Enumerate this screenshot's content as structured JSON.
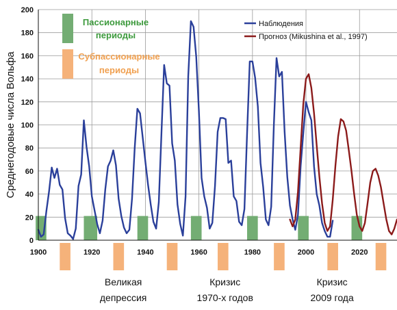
{
  "chart_data": {
    "type": "line",
    "ylabel": "Среднегодовые числа Вольфа",
    "xlabel": "",
    "xlim": [
      1900,
      2034
    ],
    "ylim": [
      0,
      200
    ],
    "x_ticks": [
      1900,
      1920,
      1940,
      1960,
      1980,
      2000,
      2020
    ],
    "y_ticks": [
      0,
      20,
      40,
      60,
      80,
      100,
      120,
      140,
      160,
      180,
      200
    ],
    "grid": true,
    "legend_position": "top-right",
    "series": [
      {
        "name": "Наблюдения",
        "color": "#2a3f9a",
        "x": [
          1900,
          1901,
          1902,
          1903,
          1904,
          1905,
          1906,
          1907,
          1908,
          1909,
          1910,
          1911,
          1912,
          1913,
          1914,
          1915,
          1916,
          1917,
          1918,
          1919,
          1920,
          1921,
          1922,
          1923,
          1924,
          1925,
          1926,
          1927,
          1928,
          1929,
          1930,
          1931,
          1932,
          1933,
          1934,
          1935,
          1936,
          1937,
          1938,
          1939,
          1940,
          1941,
          1942,
          1943,
          1944,
          1945,
          1946,
          1947,
          1948,
          1949,
          1950,
          1951,
          1952,
          1953,
          1954,
          1955,
          1956,
          1957,
          1958,
          1959,
          1960,
          1961,
          1962,
          1963,
          1964,
          1965,
          1966,
          1967,
          1968,
          1969,
          1970,
          1971,
          1972,
          1973,
          1974,
          1975,
          1976,
          1977,
          1978,
          1979,
          1980,
          1981,
          1982,
          1983,
          1984,
          1985,
          1986,
          1987,
          1988,
          1989,
          1990,
          1991,
          1992,
          1993,
          1994,
          1995,
          1996,
          1997,
          1998,
          1999,
          2000,
          2001,
          2002,
          2003,
          2004,
          2005,
          2006,
          2007,
          2008,
          2009,
          2010
        ],
        "values": [
          9,
          3,
          5,
          25,
          42,
          63,
          54,
          62,
          48,
          44,
          19,
          6,
          4,
          1,
          10,
          47,
          57,
          104,
          81,
          64,
          38,
          26,
          14,
          6,
          17,
          44,
          64,
          69,
          78,
          65,
          36,
          21,
          11,
          6,
          9,
          36,
          80,
          114,
          110,
          89,
          68,
          48,
          31,
          16,
          10,
          33,
          93,
          152,
          136,
          134,
          84,
          69,
          31,
          14,
          4,
          38,
          142,
          190,
          185,
          159,
          112,
          54,
          38,
          28,
          10,
          15,
          47,
          94,
          106,
          106,
          105,
          67,
          69,
          38,
          34,
          16,
          13,
          27,
          93,
          155,
          155,
          141,
          116,
          67,
          46,
          18,
          13,
          29,
          100,
          158,
          142,
          146,
          94,
          55,
          30,
          18,
          9,
          22,
          64,
          93,
          120,
          111,
          104,
          64,
          40,
          30,
          15,
          8,
          3,
          3,
          17
        ]
      },
      {
        "name": "Прогноз (Mikushina et al., 1997)",
        "color": "#8b1a1a",
        "x": [
          1994,
          1995,
          1996,
          1997,
          1998,
          1999,
          2000,
          2001,
          2002,
          2003,
          2004,
          2005,
          2006,
          2007,
          2008,
          2009,
          2010,
          2011,
          2012,
          2013,
          2014,
          2015,
          2016,
          2017,
          2018,
          2019,
          2020,
          2021,
          2022,
          2023,
          2024,
          2025,
          2026,
          2027,
          2028,
          2029,
          2030,
          2031,
          2032,
          2033,
          2034
        ],
        "values": [
          18,
          12,
          18,
          42,
          80,
          118,
          140,
          144,
          132,
          110,
          82,
          55,
          32,
          15,
          8,
          12,
          35,
          65,
          90,
          105,
          103,
          95,
          78,
          60,
          40,
          22,
          12,
          8,
          15,
          32,
          50,
          60,
          62,
          56,
          46,
          32,
          18,
          8,
          5,
          10,
          18
        ]
      }
    ],
    "bands": {
      "passionary_label": "Пассионарные периоды",
      "subpassionary_label": "Субпассионарные периоды",
      "passionary_color": "#73ad73",
      "subpassionary_color": "#f5b27a",
      "passionary": [
        [
          1899,
          1903
        ],
        [
          1917,
          1922
        ],
        [
          1937,
          1941
        ],
        [
          1957,
          1961
        ],
        [
          1978,
          1982
        ],
        [
          1997,
          2001
        ],
        [
          2017,
          2021
        ]
      ],
      "subpassionary": [
        [
          1908,
          1912
        ],
        [
          1928,
          1932
        ],
        [
          1948,
          1952
        ],
        [
          1967,
          1971
        ],
        [
          1988,
          1992
        ],
        [
          2008,
          2012
        ],
        [
          2026,
          2030
        ]
      ]
    },
    "annotations": [
      {
        "lines": [
          "Великая",
          "депрессия"
        ],
        "x": 1932
      },
      {
        "lines": [
          "Кризис",
          "1970-х годов"
        ],
        "x": 1970
      },
      {
        "lines": [
          "Кризис",
          "2009 года"
        ],
        "x": 2010
      }
    ]
  }
}
